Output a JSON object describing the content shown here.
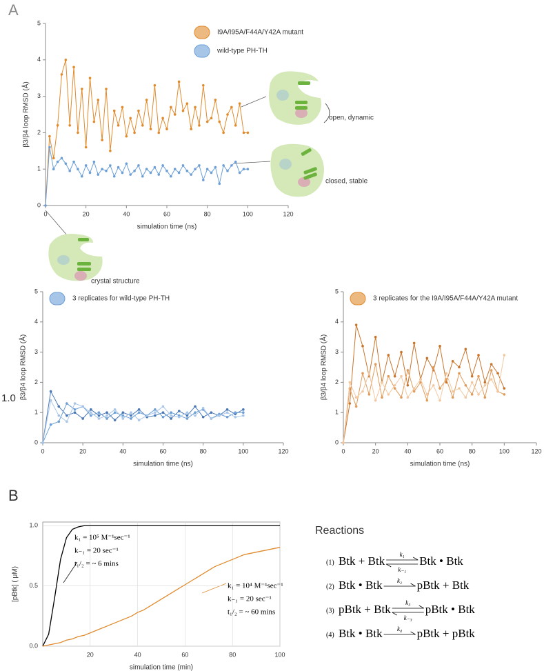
{
  "panel_labels": [
    "A",
    "B"
  ],
  "stray_label": "1.0",
  "cartoon_labels": [
    "open, dynamic",
    "closed, stable",
    "crystal structure"
  ],
  "reactions_title": "Reactions",
  "reactions": [
    {
      "number": "(1)",
      "left": "Btk + Btk",
      "right": "Btk • Btk",
      "k_forward": "k₁",
      "k_reverse": "k₋₁"
    },
    {
      "number": "(2)",
      "left": "Btk • Btk",
      "right": "pBtk + Btk",
      "k_forward": "k₂"
    },
    {
      "number": "(3)",
      "left": "pBtk + Btk",
      "right": "pBtk • Btk",
      "k_forward": "k₃",
      "k_reverse": "k₋₃"
    },
    {
      "number": "(4)",
      "left": "Btk • Btk",
      "right": "pBtk + pBtk",
      "k_forward": "k₄"
    }
  ],
  "chart_data": [
    {
      "type": "line",
      "xlabel": "simulation time (ns)",
      "ylabel": "β3/β4 loop RMSD (Å)",
      "xlim": [
        0,
        120
      ],
      "ylim": [
        0,
        5
      ],
      "xticks": [
        0,
        20,
        40,
        60,
        80,
        100,
        120
      ],
      "yticks": [
        0,
        1,
        2,
        3,
        4,
        5
      ],
      "markers": true,
      "legend": "top",
      "x": [
        0,
        2,
        4,
        6,
        8,
        10,
        12,
        14,
        16,
        18,
        20,
        22,
        24,
        26,
        28,
        30,
        32,
        34,
        36,
        38,
        40,
        42,
        44,
        46,
        48,
        50,
        52,
        54,
        56,
        58,
        60,
        62,
        64,
        66,
        68,
        70,
        72,
        74,
        76,
        78,
        80,
        82,
        84,
        86,
        88,
        90,
        92,
        94,
        96,
        98,
        100
      ],
      "series": [
        {
          "name": "I9A/I95A/F44A/Y42A mutant",
          "color": "#e08a2c",
          "values": [
            0,
            1.9,
            1.3,
            2.2,
            3.6,
            4.0,
            2.2,
            3.8,
            2.0,
            3.2,
            1.6,
            3.5,
            2.3,
            2.9,
            1.8,
            3.2,
            1.5,
            2.6,
            2.2,
            2.7,
            1.9,
            2.4,
            2.0,
            2.6,
            2.2,
            2.9,
            2.1,
            3.3,
            2.0,
            2.4,
            2.1,
            2.7,
            2.5,
            3.4,
            2.6,
            2.8,
            2.1,
            2.7,
            2.2,
            3.3,
            2.3,
            2.4,
            2.9,
            2.3,
            2.0,
            2.5,
            2.7,
            2.2,
            2.8,
            2.0,
            2.0
          ]
        },
        {
          "name": "wild-type PH-TH",
          "color": "#6c9fd6",
          "values": [
            0,
            1.6,
            1.0,
            1.2,
            1.3,
            1.15,
            0.95,
            1.2,
            1.0,
            0.8,
            1.1,
            0.9,
            1.2,
            0.85,
            1.0,
            0.95,
            1.1,
            0.8,
            1.05,
            0.9,
            1.15,
            0.85,
            0.95,
            1.1,
            0.8,
            1.0,
            0.9,
            1.05,
            0.85,
            1.1,
            0.95,
            0.8,
            1.0,
            0.9,
            1.1,
            0.95,
            0.85,
            1.0,
            1.1,
            0.7,
            1.0,
            0.9,
            1.05,
            0.6,
            1.1,
            0.95,
            1.1,
            1.2,
            0.9,
            1.0,
            1.0
          ]
        }
      ]
    },
    {
      "type": "line",
      "xlabel": "simulation time (ns)",
      "ylabel": "β3/β4 loop RMSD (Å)",
      "xlim": [
        0,
        120
      ],
      "ylim": [
        0,
        5
      ],
      "xticks": [
        0,
        20,
        40,
        60,
        80,
        100,
        120
      ],
      "yticks": [
        0,
        1,
        2,
        3,
        4,
        5
      ],
      "markers": true,
      "legend": {
        "label": "3 replicates for wild-type PH-TH",
        "color": "#6c9fd6"
      },
      "x": [
        0,
        4,
        8,
        12,
        16,
        20,
        24,
        28,
        32,
        36,
        40,
        44,
        48,
        52,
        56,
        60,
        64,
        68,
        72,
        76,
        80,
        84,
        88,
        92,
        96,
        100
      ],
      "series": [
        {
          "color": "#4a78b5",
          "values": [
            0,
            1.7,
            1.2,
            0.9,
            1.0,
            0.8,
            1.1,
            0.9,
            1.0,
            0.75,
            1.0,
            0.9,
            1.1,
            0.85,
            0.9,
            1.0,
            0.8,
            1.05,
            0.9,
            1.2,
            0.85,
            1.0,
            0.9,
            1.1,
            0.95,
            1.1
          ]
        },
        {
          "color": "#6c9fd6",
          "values": [
            0,
            0.6,
            0.7,
            1.3,
            1.1,
            1.2,
            0.9,
            1.0,
            0.8,
            1.0,
            0.9,
            0.8,
            1.0,
            0.9,
            1.1,
            0.85,
            1.0,
            0.9,
            0.8,
            1.0,
            1.1,
            0.8,
            0.95,
            0.85,
            1.0,
            1.0
          ]
        },
        {
          "color": "#a9c6e8",
          "values": [
            0,
            1.4,
            0.9,
            0.7,
            1.3,
            1.2,
            1.0,
            0.8,
            0.9,
            1.1,
            0.8,
            1.0,
            0.75,
            0.9,
            1.0,
            1.2,
            0.9,
            0.85,
            1.0,
            0.9,
            1.15,
            0.8,
            0.9,
            1.0,
            0.85,
            0.9
          ]
        }
      ]
    },
    {
      "type": "line",
      "xlabel": "simulation time (ns)",
      "ylabel": "β3/β4 loop RMSD (Å)",
      "xlim": [
        0,
        120
      ],
      "ylim": [
        0,
        5
      ],
      "xticks": [
        0,
        20,
        40,
        60,
        80,
        100,
        120
      ],
      "yticks": [
        0,
        1,
        2,
        3,
        4,
        5
      ],
      "markers": true,
      "legend": {
        "label": "3 replicates for the I9A/I95A/F44A/Y42A mutant",
        "color": "#e08a2c"
      },
      "x": [
        0,
        4,
        8,
        12,
        16,
        20,
        24,
        28,
        32,
        36,
        40,
        44,
        48,
        52,
        56,
        60,
        64,
        68,
        72,
        76,
        80,
        84,
        88,
        92,
        96,
        100
      ],
      "series": [
        {
          "color": "#c8742a",
          "values": [
            0,
            1.3,
            3.9,
            3.2,
            2.2,
            3.5,
            2.0,
            2.9,
            2.2,
            3.0,
            1.9,
            3.3,
            2.1,
            2.8,
            2.4,
            3.2,
            2.0,
            2.7,
            2.5,
            3.1,
            2.2,
            2.9,
            2.0,
            2.6,
            2.3,
            1.8
          ]
        },
        {
          "color": "#e09b5a",
          "values": [
            0,
            1.8,
            1.2,
            2.3,
            1.6,
            2.6,
            1.5,
            2.2,
            1.8,
            1.5,
            2.4,
            1.7,
            2.0,
            1.4,
            2.5,
            1.8,
            2.1,
            1.5,
            2.3,
            1.9,
            1.6,
            2.2,
            1.5,
            2.4,
            1.7,
            1.6
          ]
        },
        {
          "color": "#f2c8a2",
          "values": [
            0,
            2.0,
            1.5,
            1.7,
            2.3,
            1.4,
            2.0,
            1.6,
            1.9,
            2.2,
            1.5,
            1.8,
            2.1,
            1.6,
            1.9,
            1.4,
            2.3,
            1.7,
            1.8,
            1.5,
            2.0,
            1.6,
            1.9,
            2.1,
            1.7,
            2.9
          ]
        }
      ]
    },
    {
      "type": "line",
      "xlabel": "simulation time (min)",
      "ylabel": "[pBtk] ( μM)",
      "xlim": [
        0,
        100
      ],
      "ylim": [
        0,
        1.03
      ],
      "xticks": [
        20,
        40,
        60,
        80,
        100
      ],
      "yticks": [
        {
          "value": 0,
          "label": "0.0"
        },
        {
          "value": 0.5,
          "label": "0.5"
        },
        {
          "value": 1,
          "label": "1.0"
        }
      ],
      "grid": true,
      "frame": true,
      "markers": false,
      "annotations": [
        [
          "k₁ = 10⁵  M⁻¹sec⁻¹",
          "k₋₁ = 20  sec⁻¹",
          "t₁/₂ = ~ 6 mins"
        ],
        [
          "k₁ = 10⁴  M⁻¹sec⁻¹",
          "k₋₁ = 20  sec⁻¹",
          "t₁/₂ = ~ 60 mins"
        ]
      ],
      "x": [
        0,
        2.5,
        5,
        7.5,
        10,
        12.5,
        15,
        17.5,
        20,
        22.5,
        25,
        27.5,
        30,
        32.5,
        35,
        37.5,
        40,
        42.5,
        45,
        47.5,
        50,
        52.5,
        55,
        57.5,
        60,
        62.5,
        65,
        67.5,
        70,
        72.5,
        75,
        77.5,
        80,
        82.5,
        85,
        87.5,
        90,
        92.5,
        95,
        97.5,
        100
      ],
      "series": [
        {
          "color": "#000000",
          "values": [
            0,
            0.1,
            0.4,
            0.72,
            0.9,
            0.97,
            0.99,
            1,
            1,
            1,
            1,
            1,
            1,
            1,
            1,
            1,
            1,
            1,
            1,
            1,
            1,
            1,
            1,
            1,
            1,
            1,
            1,
            1,
            1,
            1,
            1,
            1,
            1,
            1,
            1,
            1,
            1,
            1,
            1,
            1,
            1
          ]
        },
        {
          "color": "#e08a2c",
          "values": [
            0,
            0.01,
            0.02,
            0.03,
            0.05,
            0.06,
            0.08,
            0.09,
            0.11,
            0.13,
            0.15,
            0.17,
            0.19,
            0.21,
            0.23,
            0.25,
            0.28,
            0.3,
            0.33,
            0.36,
            0.39,
            0.42,
            0.45,
            0.48,
            0.51,
            0.54,
            0.57,
            0.6,
            0.63,
            0.66,
            0.68,
            0.7,
            0.72,
            0.74,
            0.76,
            0.77,
            0.78,
            0.79,
            0.8,
            0.81,
            0.82
          ]
        }
      ]
    }
  ]
}
